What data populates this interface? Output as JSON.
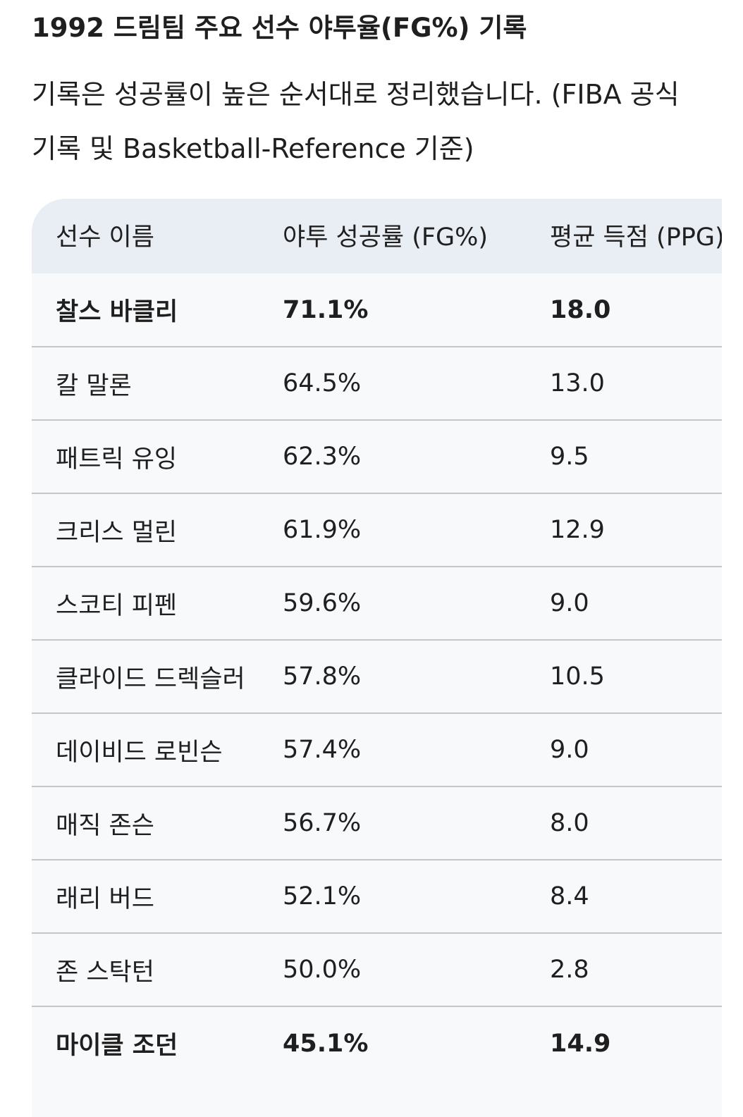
{
  "title": "1992 드림팀 주요 선수 야투율(FG%) 기록",
  "description": "기록은 성공률이 높은 순서대로 정리했습니다. (FIBA 공식 기록 및 Basketball-Reference 기준)",
  "table": {
    "headers": [
      "선수 이름",
      "야투 성공률 (FG%)",
      "평균 득점 (PPG)"
    ],
    "rows": [
      {
        "name": "찰스 바클리",
        "fg": "71.1%",
        "ppg": "18.0",
        "bold": true
      },
      {
        "name": "칼 말론",
        "fg": "64.5%",
        "ppg": "13.0",
        "bold": false
      },
      {
        "name": "패트릭 유잉",
        "fg": "62.3%",
        "ppg": "9.5",
        "bold": false
      },
      {
        "name": "크리스 멀린",
        "fg": "61.9%",
        "ppg": "12.9",
        "bold": false
      },
      {
        "name": "스코티 피펜",
        "fg": "59.6%",
        "ppg": "9.0",
        "bold": false
      },
      {
        "name": "클라이드 드렉슬러",
        "fg": "57.8%",
        "ppg": "10.5",
        "bold": false
      },
      {
        "name": "데이비드 로빈슨",
        "fg": "57.4%",
        "ppg": "9.0",
        "bold": false
      },
      {
        "name": "매직 존슨",
        "fg": "56.7%",
        "ppg": "8.0",
        "bold": false
      },
      {
        "name": "래리 버드",
        "fg": "52.1%",
        "ppg": "8.4",
        "bold": false
      },
      {
        "name": "존 스탁턴",
        "fg": "50.0%",
        "ppg": "2.8",
        "bold": false
      },
      {
        "name": "마이클 조던",
        "fg": "45.1%",
        "ppg": "14.9",
        "bold": true
      }
    ]
  }
}
